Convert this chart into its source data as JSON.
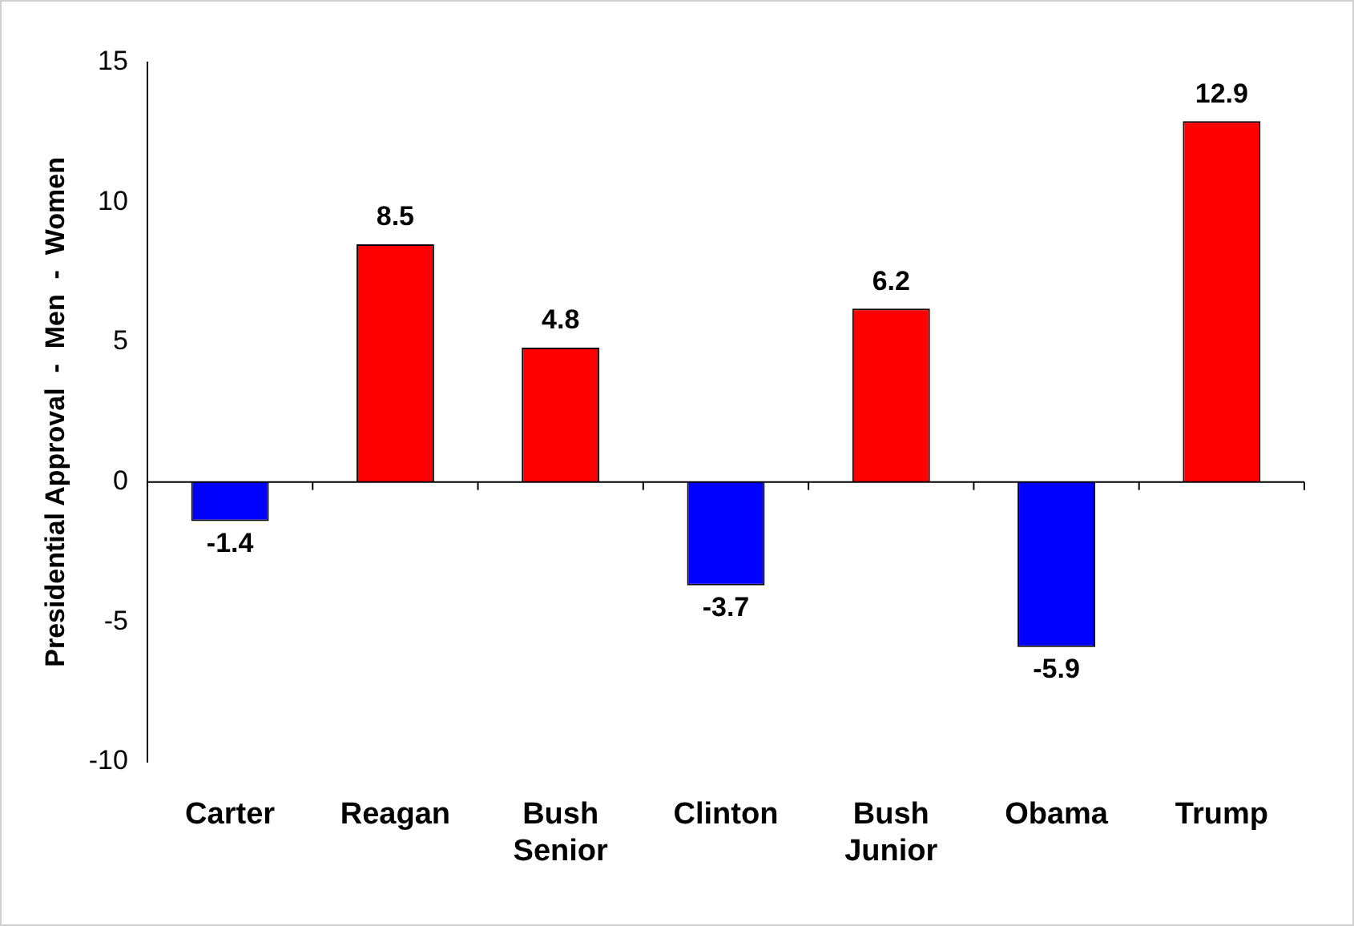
{
  "chart_data": {
    "type": "bar",
    "ylabel": "Presidential Approval  -  Men  -  Women",
    "categories": [
      "Carter",
      "Reagan",
      "Bush Senior",
      "Clinton",
      "Bush Junior",
      "Obama",
      "Trump"
    ],
    "values": [
      -1.4,
      8.5,
      4.8,
      -3.7,
      6.2,
      -5.9,
      12.9
    ],
    "colors": [
      "#0000ff",
      "#ff0000",
      "#ff0000",
      "#0000ff",
      "#ff0000",
      "#0000ff",
      "#ff0000"
    ],
    "ref_lines": [
      {
        "axis": "y",
        "value": 0,
        "color": "#000000"
      }
    ],
    "ylim": [
      -10,
      15
    ],
    "yticks": [
      -10,
      -5,
      0,
      5,
      10,
      15
    ],
    "grid": false,
    "legend": false,
    "data_labels": true
  }
}
